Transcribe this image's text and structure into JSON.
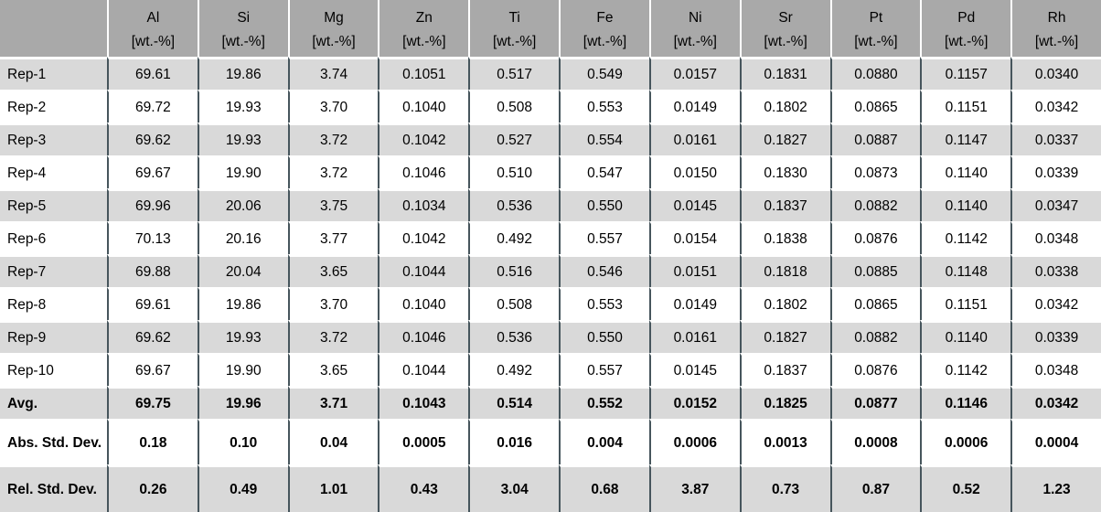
{
  "chart_data": {
    "type": "table",
    "title": "",
    "corner_label": "",
    "columns": [
      {
        "element": "Al",
        "unit": "[wt.-%]"
      },
      {
        "element": "Si",
        "unit": "[wt.-%]"
      },
      {
        "element": "Mg",
        "unit": "[wt.-%]"
      },
      {
        "element": "Zn",
        "unit": "[wt.-%]"
      },
      {
        "element": "Ti",
        "unit": "[wt.-%]"
      },
      {
        "element": "Fe",
        "unit": "[wt.-%]"
      },
      {
        "element": "Ni",
        "unit": "[wt.-%]"
      },
      {
        "element": "Sr",
        "unit": "[wt.-%]"
      },
      {
        "element": "Pt",
        "unit": "[wt.-%]"
      },
      {
        "element": "Pd",
        "unit": "[wt.-%]"
      },
      {
        "element": "Rh",
        "unit": "[wt.-%]"
      }
    ],
    "rows": [
      {
        "label": "Rep-1",
        "bold": false,
        "values": [
          "69.61",
          "19.86",
          "3.74",
          "0.1051",
          "0.517",
          "0.549",
          "0.0157",
          "0.1831",
          "0.0880",
          "0.1157",
          "0.0340"
        ]
      },
      {
        "label": "Rep-2",
        "bold": false,
        "values": [
          "69.72",
          "19.93",
          "3.70",
          "0.1040",
          "0.508",
          "0.553",
          "0.0149",
          "0.1802",
          "0.0865",
          "0.1151",
          "0.0342"
        ]
      },
      {
        "label": "Rep-3",
        "bold": false,
        "values": [
          "69.62",
          "19.93",
          "3.72",
          "0.1042",
          "0.527",
          "0.554",
          "0.0161",
          "0.1827",
          "0.0887",
          "0.1147",
          "0.0337"
        ]
      },
      {
        "label": "Rep-4",
        "bold": false,
        "values": [
          "69.67",
          "19.90",
          "3.72",
          "0.1046",
          "0.510",
          "0.547",
          "0.0150",
          "0.1830",
          "0.0873",
          "0.1140",
          "0.0339"
        ]
      },
      {
        "label": "Rep-5",
        "bold": false,
        "values": [
          "69.96",
          "20.06",
          "3.75",
          "0.1034",
          "0.536",
          "0.550",
          "0.0145",
          "0.1837",
          "0.0882",
          "0.1140",
          "0.0347"
        ]
      },
      {
        "label": "Rep-6",
        "bold": false,
        "values": [
          "70.13",
          "20.16",
          "3.77",
          "0.1042",
          "0.492",
          "0.557",
          "0.0154",
          "0.1838",
          "0.0876",
          "0.1142",
          "0.0348"
        ]
      },
      {
        "label": "Rep-7",
        "bold": false,
        "values": [
          "69.88",
          "20.04",
          "3.65",
          "0.1044",
          "0.516",
          "0.546",
          "0.0151",
          "0.1818",
          "0.0885",
          "0.1148",
          "0.0338"
        ]
      },
      {
        "label": "Rep-8",
        "bold": false,
        "values": [
          "69.61",
          "19.86",
          "3.70",
          "0.1040",
          "0.508",
          "0.553",
          "0.0149",
          "0.1802",
          "0.0865",
          "0.1151",
          "0.0342"
        ]
      },
      {
        "label": "Rep-9",
        "bold": false,
        "values": [
          "69.62",
          "19.93",
          "3.72",
          "0.1046",
          "0.536",
          "0.550",
          "0.0161",
          "0.1827",
          "0.0882",
          "0.1140",
          "0.0339"
        ]
      },
      {
        "label": "Rep-10",
        "bold": false,
        "values": [
          "69.67",
          "19.90",
          "3.65",
          "0.1044",
          "0.492",
          "0.557",
          "0.0145",
          "0.1837",
          "0.0876",
          "0.1142",
          "0.0348"
        ]
      },
      {
        "label": "Avg.",
        "bold": true,
        "values": [
          "69.75",
          "19.96",
          "3.71",
          "0.1043",
          "0.514",
          "0.552",
          "0.0152",
          "0.1825",
          "0.0877",
          "0.1146",
          "0.0342"
        ]
      },
      {
        "label": "Abs. Std. Dev.",
        "bold": true,
        "values": [
          "0.18",
          "0.10",
          "0.04",
          "0.0005",
          "0.016",
          "0.004",
          "0.0006",
          "0.0013",
          "0.0008",
          "0.0006",
          "0.0004"
        ]
      },
      {
        "label": "Rel. Std. Dev.",
        "bold": true,
        "values": [
          "0.26",
          "0.49",
          "1.01",
          "0.43",
          "3.04",
          "0.68",
          "3.87",
          "0.73",
          "0.87",
          "0.52",
          "1.23"
        ]
      }
    ],
    "colors": {
      "header_bg": "#a9a9a9",
      "band_row_bg": "#d9d9d9",
      "alt_row_bg": "#ffffff",
      "column_divider": "#46555c",
      "row_divider": "#ffffff",
      "text": "#000000"
    }
  }
}
